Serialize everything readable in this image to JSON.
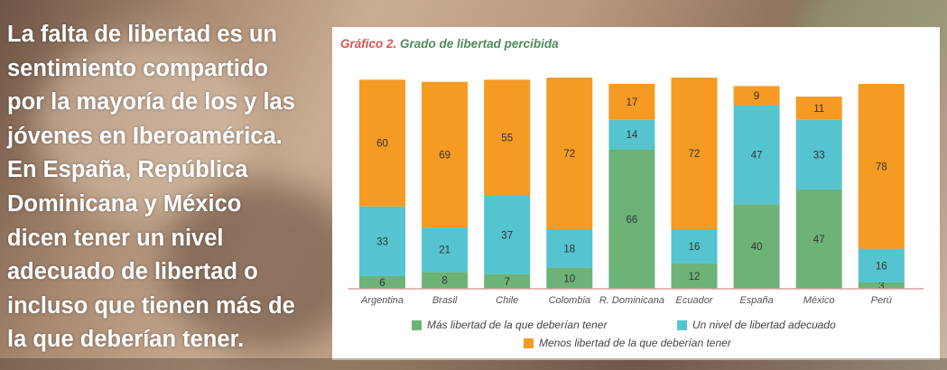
{
  "headline_lines": [
    "La falta de libertad es un",
    "sentimiento compartido",
    "por la mayoría de los y las",
    "jóvenes en Iberoamérica.",
    "En España, República",
    "Dominicana y México",
    "dicen tener un nivel",
    "adecuado de libertad o",
    "incluso que tienen más de",
    "la que deberían tener."
  ],
  "chart_title": {
    "number": "Gráfico 2.",
    "text": "Grado de libertad percibida"
  },
  "colors": {
    "mas": "#6db377",
    "adecuado": "#55c4cf",
    "menos": "#f59a23",
    "baseline": "#d9a0a0"
  },
  "chart_data": {
    "type": "bar",
    "stacked": true,
    "orientation": "vertical",
    "title": "Grado de libertad percibida",
    "categories": [
      "Argentina",
      "Brasil",
      "Chile",
      "Colombia",
      "R. Dominicana",
      "Ecuador",
      "España",
      "México",
      "Perú"
    ],
    "series": [
      {
        "name": "Más libertad de la que deberían tener",
        "values": [
          6,
          8,
          7,
          10,
          66,
          12,
          40,
          47,
          3
        ]
      },
      {
        "name": "Un nivel de libertad adecuado",
        "values": [
          33,
          21,
          37,
          18,
          14,
          16,
          47,
          33,
          16
        ]
      },
      {
        "name": "Menos libertad de la que deberían tener",
        "values": [
          60,
          69,
          55,
          72,
          17,
          72,
          9,
          11,
          78
        ]
      }
    ],
    "legend_position": "bottom",
    "grid": false
  }
}
